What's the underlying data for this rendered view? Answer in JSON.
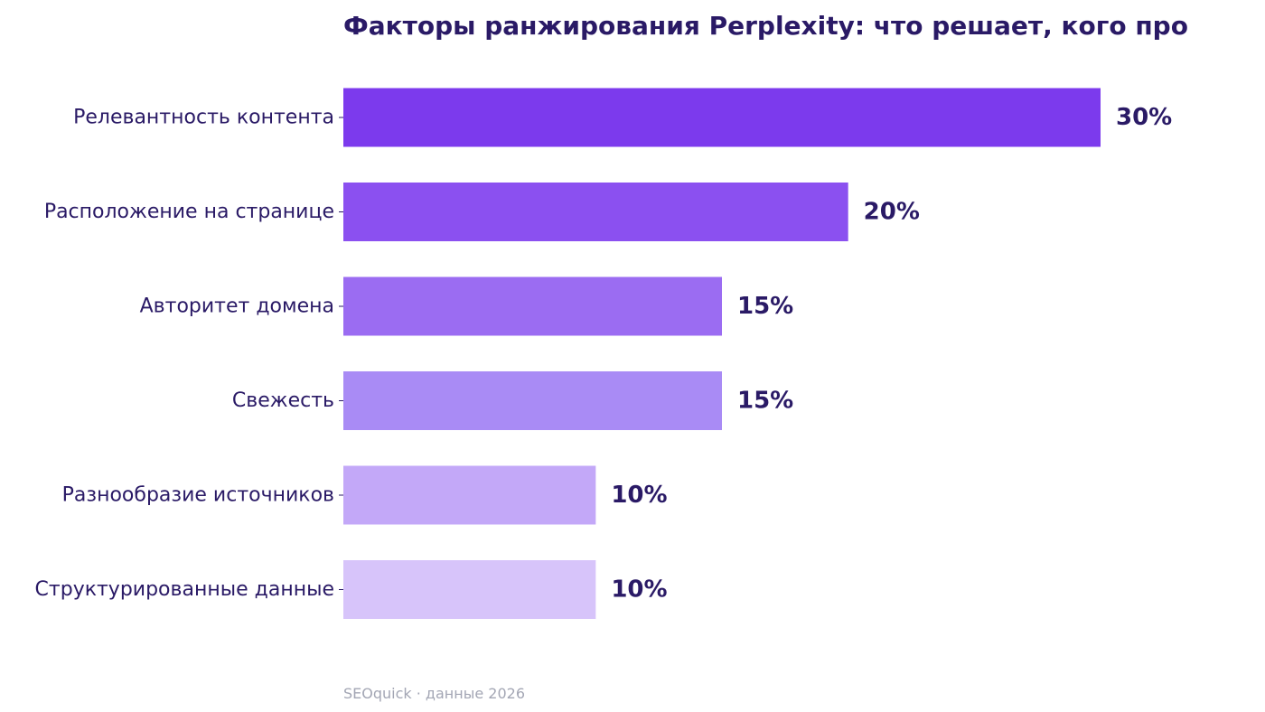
{
  "chart_data": {
    "type": "bar",
    "orientation": "horizontal",
    "title": "Факторы ранжирования Perplexity: что решает, кого про",
    "categories": [
      "Релевантность контента",
      "Расположение на странице",
      "Авторитет домена",
      "Свежесть",
      "Разнообразие источников",
      "Структурированные данные"
    ],
    "values": [
      30,
      20,
      15,
      15,
      10,
      10
    ],
    "value_labels": [
      "30%",
      "20%",
      "15%",
      "15%",
      "10%",
      "10%"
    ],
    "unit": "%",
    "xlim": [
      0,
      30
    ],
    "grid": false,
    "bar_colors": [
      "#7c3aed",
      "#8b50f0",
      "#9b6cf2",
      "#a98bf5",
      "#c3a8f8",
      "#d7c4fa"
    ]
  },
  "footer": {
    "source": "SEOquick · данные 2026"
  }
}
